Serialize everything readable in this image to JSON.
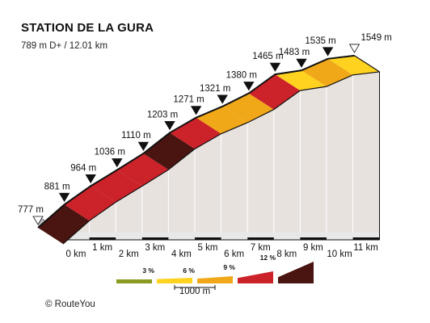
{
  "chart_data": {
    "type": "area",
    "title": "STATION DE LA GURA",
    "subtitle": "789 m D+ / 12.01 km",
    "xlabel": "",
    "ylabel": "",
    "x_unit": "km",
    "y_unit": "m",
    "x_ticks": [
      "0 km",
      "1 km",
      "2 km",
      "3 km",
      "4 km",
      "5 km",
      "6 km",
      "7 km",
      "8 km",
      "9 km",
      "10 km",
      "11 km"
    ],
    "points": [
      {
        "x": 0,
        "y": 777,
        "label": "777 m"
      },
      {
        "x": 1,
        "y": 881,
        "label": "881 m"
      },
      {
        "x": 2,
        "y": 964,
        "label": "964 m"
      },
      {
        "x": 3,
        "y": 1036,
        "label": "1036 m"
      },
      {
        "x": 4,
        "y": 1110,
        "label": "1110 m"
      },
      {
        "x": 5,
        "y": 1203,
        "label": "1203 m"
      },
      {
        "x": 6,
        "y": 1271,
        "label": "1271 m"
      },
      {
        "x": 7,
        "y": 1321,
        "label": "1321 m"
      },
      {
        "x": 8,
        "y": 1380,
        "label": "1380 m"
      },
      {
        "x": 9,
        "y": 1465,
        "label": "1465 m"
      },
      {
        "x": 10,
        "y": 1483,
        "label": "1483 m"
      },
      {
        "x": 11,
        "y": 1535,
        "label": "1535 m"
      },
      {
        "x": 12.01,
        "y": 1549,
        "label": "1549 m"
      }
    ],
    "segments": [
      {
        "from": 0,
        "to": 1,
        "grade_class": 4
      },
      {
        "from": 1,
        "to": 2,
        "grade_class": 3
      },
      {
        "from": 2,
        "to": 3,
        "grade_class": 3
      },
      {
        "from": 3,
        "to": 4,
        "grade_class": 3
      },
      {
        "from": 4,
        "to": 5,
        "grade_class": 4
      },
      {
        "from": 5,
        "to": 6,
        "grade_class": 3
      },
      {
        "from": 6,
        "to": 7,
        "grade_class": 2
      },
      {
        "from": 7,
        "to": 8,
        "grade_class": 2
      },
      {
        "from": 8,
        "to": 9,
        "grade_class": 3
      },
      {
        "from": 9,
        "to": 10,
        "grade_class": 1
      },
      {
        "from": 10,
        "to": 11,
        "grade_class": 2
      },
      {
        "from": 11,
        "to": 12.01,
        "grade_class": 1
      }
    ],
    "legend": {
      "position": "bottom",
      "items": [
        {
          "label": "",
          "color": "#8a9a22"
        },
        {
          "label": "3 %",
          "color": "#ffd21f"
        },
        {
          "label": "6 %",
          "color": "#f0a818"
        },
        {
          "label": "9 %",
          "color": "#cc2229"
        },
        {
          "label": "12 %",
          "color": "#4a1410"
        }
      ],
      "scale_label": "1000 m"
    },
    "colors": {
      "wall": "#e8e2df",
      "base": "#a8a8a8",
      "base_front": "#e8e8e8",
      "outline": "#111111",
      "km_mark": "#111111"
    },
    "credit": "© RouteYou"
  }
}
